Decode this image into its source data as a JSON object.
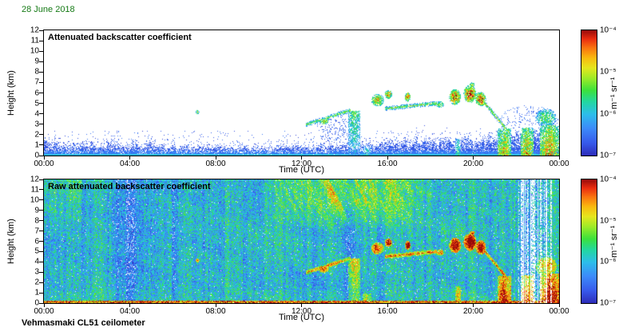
{
  "page": {
    "date_label": "28 June 2018",
    "date_color": "#157a15",
    "footer_label": "Vehmasmaki CL51 ceilometer",
    "background": "#ffffff"
  },
  "chart_data": [
    {
      "type": "heatmap",
      "title": "Attenuated backscatter coefficient",
      "xlabel": "Time (UTC)",
      "ylabel": "Height (km)",
      "xlim_hours": [
        0,
        24
      ],
      "ylim_km": [
        0,
        12
      ],
      "x_ticks": [
        "00:00",
        "04:00",
        "08:00",
        "12:00",
        "16:00",
        "20:00",
        "00:00"
      ],
      "y_ticks": [
        "0",
        "1",
        "2",
        "3",
        "4",
        "5",
        "6",
        "7",
        "8",
        "9",
        "10",
        "11",
        "12"
      ],
      "colormap": "jet",
      "background": "white",
      "colorbar": {
        "ticks": [
          "10⁻⁴",
          "10⁻⁵",
          "10⁻⁶",
          "10⁻⁷"
        ],
        "units": "m⁻¹ sr⁻¹",
        "log10_range": [
          -4,
          -7
        ]
      },
      "boundary_layer_km": [
        [
          0,
          1.0
        ],
        [
          2,
          0.95
        ],
        [
          4,
          0.9
        ],
        [
          6,
          0.8
        ],
        [
          8,
          0.65
        ],
        [
          10,
          0.55
        ],
        [
          12,
          0.65
        ],
        [
          14,
          0.9
        ],
        [
          16,
          1.1
        ],
        [
          18,
          1.2
        ],
        [
          20,
          1.35
        ],
        [
          21,
          1.6
        ],
        [
          22,
          1.8
        ],
        [
          24,
          2.0
        ]
      ],
      "features": {
        "arcs": [
          {
            "t0": 12.2,
            "h0": 2.95,
            "t1": 14.3,
            "h1": 4.35,
            "w": 0.22,
            "v": 0.6
          },
          {
            "t0": 15.9,
            "h0": 4.5,
            "t1": 18.3,
            "h1": 5.0,
            "w": 0.22,
            "v": 0.62
          },
          {
            "t0": 20.55,
            "h0": 5.0,
            "t1": 21.7,
            "h1": 2.1,
            "w": 0.25,
            "v": 0.68
          }
        ],
        "clusters": [
          {
            "t": 7.15,
            "h": 4.15,
            "rt": 0.09,
            "rh": 0.2,
            "v": 0.62
          },
          {
            "t": 13.05,
            "h": 3.3,
            "rt": 0.22,
            "rh": 0.35,
            "v": 0.68
          },
          {
            "t": 15.55,
            "h": 5.3,
            "rt": 0.3,
            "rh": 0.6,
            "v": 0.72
          },
          {
            "t": 16.05,
            "h": 5.85,
            "rt": 0.18,
            "rh": 0.4,
            "v": 0.78
          },
          {
            "t": 16.95,
            "h": 5.6,
            "rt": 0.13,
            "rh": 0.45,
            "v": 0.85
          },
          {
            "t": 18.45,
            "h": 4.9,
            "rt": 0.2,
            "rh": 0.3,
            "v": 0.6
          },
          {
            "t": 19.15,
            "h": 5.6,
            "rt": 0.28,
            "rh": 0.75,
            "v": 0.85
          },
          {
            "t": 19.85,
            "h": 5.9,
            "rt": 0.3,
            "rh": 0.85,
            "v": 0.88
          },
          {
            "t": 19.95,
            "h": 6.8,
            "rt": 0.12,
            "rh": 0.2,
            "v": 0.7
          },
          {
            "t": 20.35,
            "h": 5.4,
            "rt": 0.25,
            "rh": 0.7,
            "v": 0.85
          },
          {
            "t": 23.4,
            "h": 3.6,
            "rt": 0.5,
            "rh": 0.9,
            "v": 0.5
          }
        ],
        "columns": [
          {
            "t": 14.45,
            "tw": 0.28,
            "htop": 4.3,
            "v": 0.55,
            "mode": "top"
          },
          {
            "t": 15.05,
            "tw": 0.2,
            "htop": 0.9,
            "v": 0.45,
            "mode": "ground"
          },
          {
            "t": 19.3,
            "tw": 0.12,
            "htop": 1.6,
            "v": 0.5,
            "mode": "ground"
          },
          {
            "t": 21.45,
            "tw": 0.3,
            "htop": 2.6,
            "v": 0.8,
            "mode": "ground"
          },
          {
            "t": 22.5,
            "tw": 0.3,
            "htop": 2.7,
            "v": 0.82,
            "mode": "ground"
          },
          {
            "t": 23.55,
            "tw": 0.45,
            "htop": 2.9,
            "v": 0.85,
            "mode": "ground"
          }
        ],
        "fuzz": [
          {
            "t": 13.6,
            "h": 2.6,
            "rt": 0.9,
            "rh": 1.3,
            "p": 0.14,
            "v": 0.12
          },
          {
            "t": 22.6,
            "h": 3.2,
            "rt": 1.4,
            "rh": 1.6,
            "p": 0.1,
            "v": 0.14
          }
        ]
      }
    },
    {
      "type": "heatmap",
      "title": "Raw attenuated backscatter coefficient",
      "xlabel": "Time (UTC)",
      "ylabel": "Height (km)",
      "xlim_hours": [
        0,
        24
      ],
      "ylim_km": [
        0,
        12
      ],
      "x_ticks": [
        "00:00",
        "04:00",
        "08:00",
        "12:00",
        "16:00",
        "20:00",
        "00:00"
      ],
      "y_ticks": [
        "0",
        "1",
        "2",
        "3",
        "4",
        "5",
        "6",
        "7",
        "8",
        "9",
        "10",
        "11",
        "12"
      ],
      "colormap": "jet",
      "background": "noise",
      "colorbar": {
        "ticks": [
          "10⁻⁴",
          "10⁻⁵",
          "10⁻⁶",
          "10⁻⁷"
        ],
        "units": "m⁻¹ sr⁻¹",
        "log10_range": [
          -4,
          -7
        ]
      },
      "noise": {
        "base": 0.33,
        "jitter": 0.38,
        "top_band": {
          "t0": 10.0,
          "t1": 18.3,
          "h_start": 7.0,
          "boost": 0.3
        },
        "left_top_boost": 0.12,
        "dark_columns": [
          {
            "t": 3.9,
            "tw": 0.45,
            "drop": 0.16
          },
          {
            "t": 6.05,
            "tw": 0.2,
            "drop": 0.08
          },
          {
            "t": 14.3,
            "tw": 0.3,
            "drop": 0.1
          }
        ],
        "white_stripes": {
          "t0": 22.05,
          "t1": 23.65
        },
        "bottom_line": {
          "h": 0.2,
          "v": 0.8
        }
      }
    }
  ]
}
